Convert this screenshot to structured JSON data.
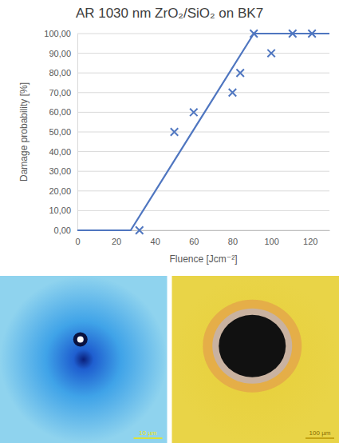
{
  "chart_data": {
    "type": "scatter",
    "title": "AR 1030 nm ZrO₂/SiO₂ on BK7",
    "x_label": "Fluence [Jcm⁻²]",
    "y_label": "Damage probability [%]",
    "xlim": [
      0,
      130
    ],
    "xticks": [
      0,
      20,
      40,
      60,
      80,
      100,
      120
    ],
    "ylim": [
      0,
      100
    ],
    "yticks": [
      {
        "value": 0,
        "label": "0,00"
      },
      {
        "value": 10,
        "label": "10,00"
      },
      {
        "value": 20,
        "label": "20,00"
      },
      {
        "value": 30,
        "label": "30,00"
      },
      {
        "value": 40,
        "label": "40,00"
      },
      {
        "value": 50,
        "label": "50,00"
      },
      {
        "value": 60,
        "label": "60,00"
      },
      {
        "value": 70,
        "label": "70,00"
      },
      {
        "value": 80,
        "label": "80,00"
      },
      {
        "value": 90,
        "label": "90,00"
      },
      {
        "value": 100,
        "label": "100,00"
      }
    ],
    "grid": true,
    "series": [
      {
        "type": "line",
        "color": "#4f76c0",
        "line_style": "solid",
        "x": [
          0,
          27.5,
          91,
          130
        ],
        "values": [
          0,
          0,
          100,
          100
        ]
      },
      {
        "type": "scatter",
        "color": "#4f76c0",
        "marker": "x",
        "x": [
          32,
          50,
          60,
          80,
          84,
          91,
          100,
          111,
          121
        ],
        "values": [
          0,
          50,
          60,
          70,
          80,
          100,
          90,
          100,
          100
        ]
      }
    ],
    "annotations": [
      "10 µm",
      "100 µm"
    ]
  }
}
